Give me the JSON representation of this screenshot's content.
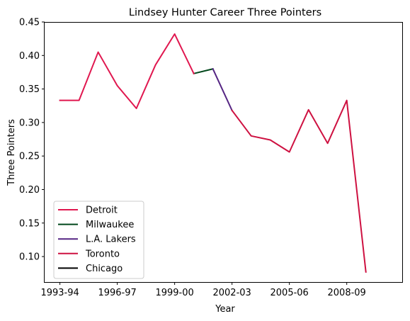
{
  "chart_data": {
    "type": "line",
    "title": "Lindsey Hunter Career Three Pointers",
    "xlabel": "Year",
    "ylabel": "Three Pointers",
    "x_tick_labels": [
      "1993-94",
      "1996-97",
      "1999-00",
      "2002-03",
      "2005-06",
      "2008-09"
    ],
    "y_ticks": [
      0.1,
      0.15,
      0.2,
      0.25,
      0.3,
      0.35,
      0.4,
      0.45
    ],
    "y_tick_labels": [
      "0.10",
      "0.15",
      "0.20",
      "0.25",
      "0.30",
      "0.35",
      "0.40",
      "0.45"
    ],
    "xlim": [
      -0.8,
      17.9
    ],
    "ylim": [
      0.062,
      0.45
    ],
    "legend_position": "lower-left",
    "grid": false,
    "series": [
      {
        "name": "Detroit",
        "color": "#e0174f",
        "points": [
          {
            "x": 0,
            "y": 0.333
          },
          {
            "x": 1,
            "y": 0.333
          },
          {
            "x": 2,
            "y": 0.405
          },
          {
            "x": 3,
            "y": 0.355
          },
          {
            "x": 4,
            "y": 0.321
          },
          {
            "x": 5,
            "y": 0.386
          },
          {
            "x": 6,
            "y": 0.432
          },
          {
            "x": 7,
            "y": 0.373
          }
        ]
      },
      {
        "name": "Milwaukee",
        "color": "#00471b",
        "points": [
          {
            "x": 7,
            "y": 0.373
          },
          {
            "x": 8,
            "y": 0.38
          }
        ]
      },
      {
        "name": "L.A. Lakers",
        "color": "#552583",
        "points": [
          {
            "x": 8,
            "y": 0.38
          },
          {
            "x": 9,
            "y": 0.318
          }
        ]
      },
      {
        "name": "Toronto",
        "color": "#ce1141",
        "points": [
          {
            "x": 9,
            "y": 0.318
          },
          {
            "x": 10,
            "y": 0.28
          },
          {
            "x": 11,
            "y": 0.274
          },
          {
            "x": 12,
            "y": 0.256
          },
          {
            "x": 13,
            "y": 0.319
          },
          {
            "x": 14,
            "y": 0.269
          },
          {
            "x": 15,
            "y": 0.333
          },
          {
            "x": 16,
            "y": 0.077
          }
        ]
      },
      {
        "name": "Chicago",
        "color": "#000000",
        "points": []
      }
    ],
    "draw_order": [
      1,
      2,
      3,
      0,
      4
    ]
  }
}
